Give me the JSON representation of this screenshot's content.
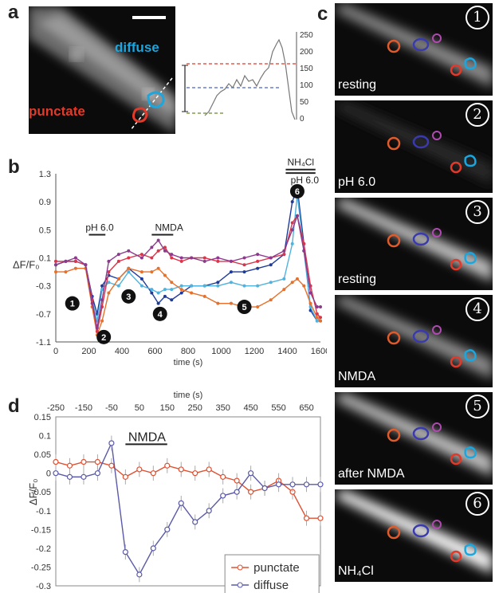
{
  "panel_labels": {
    "a": "a",
    "b": "b",
    "c": "c",
    "d": "d"
  },
  "panel_a": {
    "diffuse_label": "diffuse",
    "punctate_label": "punctate",
    "profile_yticks": [
      "0",
      "50",
      "100",
      "150",
      "200",
      "250"
    ],
    "colors": {
      "diffuse": "#1aa7e0",
      "punctate": "#e23a2a"
    }
  },
  "panel_b": {
    "ylabel": "ΔF/F₀",
    "xlabel": "time (s)",
    "xticks": [
      "0",
      "200",
      "400",
      "600",
      "800",
      "1000",
      "1200",
      "1400",
      "1600"
    ],
    "yticks": [
      "1.3",
      "0.9",
      "0.5",
      "0.1",
      "-0.3",
      "-0.7",
      "-1.1"
    ],
    "annotations": {
      "ph1": "pH 6.0",
      "nmda": "NMDA",
      "nh4cl": "NH₄Cl",
      "ph2": "pH 6.0"
    },
    "markers": [
      "1",
      "2",
      "3",
      "4",
      "5",
      "6"
    ]
  },
  "panel_c": {
    "frames": [
      {
        "num": "1",
        "label": "resting"
      },
      {
        "num": "2",
        "label": "pH 6.0"
      },
      {
        "num": "3",
        "label": "resting"
      },
      {
        "num": "4",
        "label": "NMDA"
      },
      {
        "num": "5",
        "label": "after NMDA"
      },
      {
        "num": "6",
        "label": "NH₄Cl"
      }
    ]
  },
  "chart_data": [
    {
      "type": "line",
      "xlabel": "time (s)",
      "ylabel": "ΔF/F₀",
      "xlim": [
        0,
        1600
      ],
      "ylim": [
        -1.1,
        1.3
      ],
      "annotations": [
        "pH 6.0",
        "NMDA",
        "NH₄Cl",
        "pH 6.0"
      ],
      "series": [
        {
          "color": "#1f3b9a",
          "x": [
            0,
            60,
            120,
            180,
            220,
            250,
            280,
            320,
            380,
            440,
            520,
            580,
            620,
            660,
            700,
            760,
            820,
            900,
            980,
            1060,
            1140,
            1220,
            1300,
            1380,
            1430,
            1460,
            1500,
            1540,
            1580,
            1600
          ],
          "y": [
            0.0,
            0.05,
            0.05,
            0.0,
            -0.45,
            -0.7,
            -0.3,
            -0.15,
            -0.2,
            -0.05,
            -0.2,
            -0.4,
            -0.55,
            -0.45,
            -0.5,
            -0.4,
            -0.3,
            -0.3,
            -0.25,
            -0.1,
            -0.1,
            -0.05,
            0.0,
            0.15,
            0.9,
            1.1,
            0.3,
            -0.65,
            -0.8,
            -0.8
          ]
        },
        {
          "color": "#4fb3e0",
          "x": [
            0,
            60,
            120,
            180,
            220,
            250,
            280,
            320,
            380,
            440,
            520,
            580,
            620,
            660,
            700,
            760,
            820,
            900,
            980,
            1060,
            1140,
            1220,
            1300,
            1380,
            1430,
            1460,
            1500,
            1540,
            1580,
            1600
          ],
          "y": [
            0.05,
            0.05,
            0.05,
            0.0,
            -0.5,
            -0.8,
            -0.35,
            -0.25,
            -0.3,
            -0.1,
            -0.3,
            -0.35,
            -0.4,
            -0.35,
            -0.35,
            -0.3,
            -0.3,
            -0.3,
            -0.3,
            -0.25,
            -0.3,
            -0.3,
            -0.25,
            -0.2,
            0.3,
            1.0,
            0.2,
            -0.6,
            -0.8,
            -0.8
          ]
        },
        {
          "color": "#e8702a",
          "x": [
            0,
            60,
            120,
            180,
            220,
            250,
            280,
            320,
            380,
            440,
            520,
            580,
            620,
            660,
            700,
            760,
            820,
            900,
            980,
            1060,
            1140,
            1220,
            1300,
            1380,
            1430,
            1460,
            1500,
            1540,
            1580,
            1600
          ],
          "y": [
            -0.1,
            -0.1,
            -0.05,
            -0.05,
            -0.6,
            -1.0,
            -0.8,
            -0.4,
            -0.2,
            -0.05,
            -0.1,
            -0.1,
            -0.05,
            -0.15,
            -0.25,
            -0.35,
            -0.4,
            -0.45,
            -0.55,
            -0.55,
            -0.6,
            -0.6,
            -0.5,
            -0.35,
            -0.25,
            -0.2,
            -0.3,
            -0.55,
            -0.75,
            -0.8
          ]
        },
        {
          "color": "#d8364a",
          "x": [
            0,
            60,
            120,
            180,
            220,
            250,
            280,
            320,
            380,
            440,
            520,
            580,
            620,
            660,
            700,
            760,
            820,
            900,
            980,
            1060,
            1140,
            1220,
            1300,
            1380,
            1430,
            1460,
            1500,
            1540,
            1580,
            1600
          ],
          "y": [
            0.05,
            0.05,
            0.05,
            0.0,
            -0.5,
            -0.95,
            -0.6,
            -0.1,
            0.05,
            0.1,
            0.15,
            0.1,
            0.2,
            0.25,
            0.1,
            0.05,
            0.1,
            0.1,
            0.05,
            0.05,
            0.0,
            0.05,
            0.1,
            0.15,
            0.6,
            0.7,
            0.3,
            -0.3,
            -0.7,
            -0.75
          ]
        },
        {
          "color": "#8c3a8c",
          "x": [
            0,
            60,
            120,
            180,
            220,
            250,
            280,
            320,
            380,
            440,
            520,
            580,
            620,
            660,
            700,
            760,
            820,
            900,
            980,
            1060,
            1140,
            1220,
            1300,
            1380,
            1430,
            1460,
            1500,
            1540,
            1580,
            1600
          ],
          "y": [
            0.0,
            0.05,
            0.1,
            0.0,
            -0.55,
            -0.9,
            -0.5,
            0.05,
            0.15,
            0.2,
            0.1,
            0.25,
            0.35,
            0.2,
            0.15,
            0.1,
            0.1,
            0.05,
            0.1,
            0.05,
            0.1,
            0.15,
            0.1,
            0.2,
            0.5,
            0.7,
            0.2,
            -0.4,
            -0.6,
            -0.6
          ]
        }
      ]
    },
    {
      "type": "line",
      "xlabel": "time (s)",
      "ylabel": "ΔF/F₀",
      "xlim": [
        -250,
        700
      ],
      "ylim": [
        -0.3,
        0.15
      ],
      "xticks": [
        "-250",
        "-150",
        "-50",
        "50",
        "150",
        "250",
        "350",
        "450",
        "550",
        "650"
      ],
      "yticks": [
        "0.15",
        "0.1",
        "0.05",
        "0",
        "-0.05",
        "-0.1",
        "-0.15",
        "-0.2",
        "-0.25",
        "-0.3"
      ],
      "annotation": "NMDA",
      "x": [
        -250,
        -200,
        -150,
        -100,
        -50,
        0,
        50,
        100,
        150,
        200,
        250,
        300,
        350,
        400,
        450,
        500,
        550,
        600,
        650,
        700
      ],
      "series": [
        {
          "name": "punctate",
          "color": "#e05030",
          "values": [
            0.03,
            0.02,
            0.03,
            0.03,
            0.02,
            -0.01,
            0.01,
            0.0,
            0.02,
            0.01,
            0.0,
            0.01,
            -0.01,
            -0.02,
            -0.05,
            -0.04,
            -0.02,
            -0.05,
            -0.12,
            -0.12
          ]
        },
        {
          "name": "diffuse",
          "color": "#5a5aa8",
          "values": [
            0.0,
            -0.01,
            -0.01,
            0.0,
            0.08,
            -0.21,
            -0.27,
            -0.2,
            -0.15,
            -0.08,
            -0.13,
            -0.1,
            -0.06,
            -0.05,
            0.0,
            -0.04,
            -0.03,
            -0.03,
            -0.03,
            -0.03
          ]
        }
      ]
    }
  ]
}
